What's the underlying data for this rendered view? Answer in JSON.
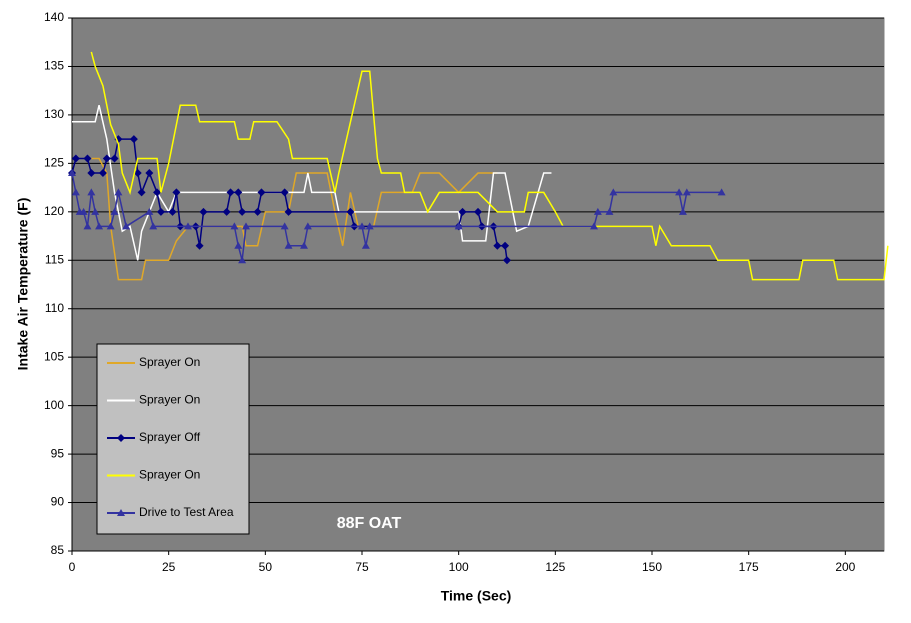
{
  "chart_data": {
    "type": "line",
    "x_label": "Time (Sec)",
    "y_label": "Intake Air Temperature (F)",
    "annotation": "88F OAT",
    "xlim": [
      0,
      210
    ],
    "xticks": [
      0,
      25,
      50,
      75,
      100,
      125,
      150,
      175,
      200
    ],
    "ylim": [
      85,
      140
    ],
    "yticks": [
      85,
      90,
      95,
      100,
      105,
      110,
      115,
      120,
      125,
      130,
      135,
      140
    ],
    "grid": true,
    "legend": "lower-left",
    "plot_color": "#808080",
    "series": [
      {
        "name": "Sprayer On",
        "color": "#e0a828",
        "marker": "none",
        "x": [
          5,
          7,
          9,
          10,
          12,
          18,
          19,
          25,
          27,
          30,
          44,
          45,
          48,
          50,
          56,
          58,
          66,
          68,
          70,
          72,
          74,
          78,
          80,
          88,
          90,
          95,
          100,
          105,
          110
        ],
        "values": [
          125.5,
          125.5,
          124,
          118.5,
          113,
          113,
          115,
          115,
          117,
          118.5,
          118.5,
          116.5,
          116.5,
          120,
          120,
          124,
          124,
          120,
          116.5,
          122,
          118.5,
          118.5,
          122,
          122,
          124,
          124,
          122,
          124,
          124
        ]
      },
      {
        "name": "Sprayer On",
        "color": "#ffffff",
        "marker": "none",
        "x": [
          0,
          6,
          7,
          9,
          11,
          13,
          15,
          17,
          18,
          20,
          22,
          25,
          27,
          60,
          61,
          62,
          68,
          69,
          75,
          100,
          101,
          107,
          109,
          112,
          115,
          118,
          122,
          124
        ],
        "values": [
          129.3,
          129.3,
          131,
          127.5,
          122,
          118,
          118.5,
          115,
          118,
          120,
          122,
          120,
          122,
          122,
          124,
          122,
          122,
          120,
          120,
          120,
          117,
          117,
          124,
          124,
          118,
          118.5,
          124,
          124
        ]
      },
      {
        "name": "Sprayer Off",
        "color": "#000080",
        "marker": "diamond",
        "x": [
          0,
          1,
          4,
          5,
          8,
          9,
          11,
          12,
          16,
          17,
          18,
          20,
          22,
          23,
          26,
          27,
          28,
          32,
          33,
          34,
          40,
          41,
          43,
          44,
          48,
          49,
          55,
          56,
          72,
          73,
          100,
          101,
          105,
          106,
          109,
          110,
          112,
          112.5
        ],
        "values": [
          124,
          125.5,
          125.5,
          124,
          124,
          125.5,
          125.5,
          127.5,
          127.5,
          124,
          122,
          124,
          122,
          120,
          120,
          122,
          118.5,
          118.5,
          116.5,
          120,
          120,
          122,
          122,
          120,
          120,
          122,
          122,
          120,
          120,
          118.5,
          118.5,
          120,
          120,
          118.5,
          118.5,
          116.5,
          116.5,
          115
        ]
      },
      {
        "name": "Sprayer On",
        "color": "#ffff00",
        "marker": "none",
        "x": [
          5,
          6,
          8,
          9,
          10,
          12,
          13,
          15,
          17,
          22,
          23,
          25,
          27,
          28,
          32,
          33,
          42,
          43,
          46,
          47,
          53,
          56,
          57,
          66,
          68,
          69,
          73,
          75,
          77,
          79,
          80,
          85,
          86,
          90,
          92,
          95,
          105,
          110,
          117,
          118,
          122,
          125,
          127,
          150,
          151,
          152,
          155,
          165,
          167,
          175,
          176,
          188,
          189,
          197,
          198,
          210,
          211
        ],
        "values": [
          136.5,
          135,
          133,
          131,
          129,
          127,
          124,
          122,
          125.5,
          125.5,
          122,
          125,
          129,
          131,
          131,
          129.3,
          129.3,
          127.5,
          127.5,
          129.3,
          129.3,
          127.5,
          125.5,
          125.5,
          122,
          124,
          131,
          134.5,
          134.5,
          125.5,
          124,
          124,
          122,
          122,
          120,
          122,
          122,
          120,
          120,
          122,
          122,
          120,
          118.5,
          118.5,
          116.5,
          118.5,
          116.5,
          116.5,
          115,
          115,
          113,
          113,
          115,
          115,
          113,
          113,
          116.5
        ]
      },
      {
        "name": "Drive to Test Area",
        "color": "#3333a0",
        "marker": "triangle",
        "x": [
          0,
          1,
          2,
          3,
          4,
          5,
          6,
          7,
          10,
          11,
          12,
          14,
          20,
          21,
          30,
          42,
          43,
          44,
          45,
          55,
          56,
          60,
          61,
          75,
          76,
          77,
          100,
          135,
          136,
          139,
          140,
          157,
          158,
          159,
          168
        ],
        "values": [
          124,
          122,
          120,
          120,
          118.5,
          122,
          120,
          118.5,
          118.5,
          120,
          122,
          118.5,
          120,
          118.5,
          118.5,
          118.5,
          116.5,
          115,
          118.5,
          118.5,
          116.5,
          116.5,
          118.5,
          118.5,
          116.5,
          118.5,
          118.5,
          118.5,
          120,
          120,
          122,
          122,
          120,
          122,
          122
        ]
      }
    ]
  }
}
